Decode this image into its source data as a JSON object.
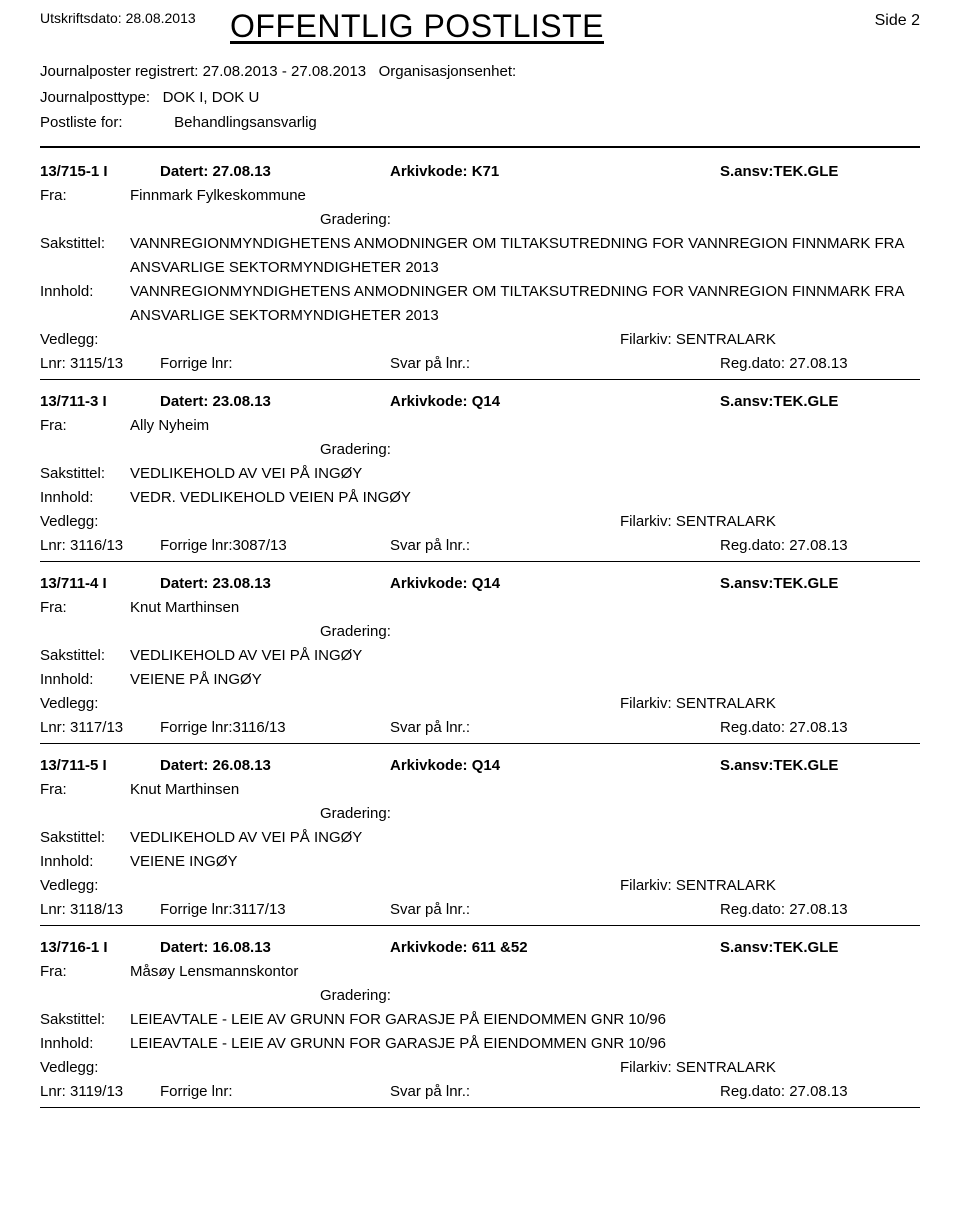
{
  "header": {
    "utskrift_label": "Utskriftsdato:",
    "utskrift_date": "28.08.2013",
    "title": "OFFENTLIG POSTLISTE",
    "side_label": "Side",
    "side_num": "2"
  },
  "meta": {
    "reg_label": "Journalposter registrert:",
    "reg_range": "27.08.2013  -  27.08.2013",
    "org_label": "Organisasjonsenhet:",
    "jptype_label": "Journalposttype:",
    "jptype_value": "DOK I, DOK U",
    "postliste_label": "Postliste for:",
    "postliste_value": "Behandlingsansvarlig"
  },
  "labels": {
    "datert": "Datert:",
    "arkivkode": "Arkivkode:",
    "sansv": "S.ansv:",
    "fra": "Fra:",
    "gradering": "Gradering:",
    "sakstittel": "Sakstittel:",
    "innhold": "Innhold:",
    "vedlegg": "Vedlegg:",
    "filarkiv": "Filarkiv:",
    "lnr": "Lnr:",
    "forrige": "Forrige lnr:",
    "svar": "Svar på lnr.:",
    "regdato": "Reg.dato:"
  },
  "entries": [
    {
      "jnr": "13/715-1 I",
      "datert": "27.08.13",
      "arkivkode": "K71",
      "sansv": "TEK.GLE",
      "fra": "Finnmark Fylkeskommune",
      "sakstittel": "VANNREGIONMYNDIGHETENS ANMODNINGER OM TILTAKSUTREDNING FOR  VANNREGION FINNMARK FRA ANSVARLIGE SEKTORMYNDIGHETER 2013",
      "innhold": "VANNREGIONMYNDIGHETENS ANMODNINGER OM TILTAKSUTREDNING FOR  VANNREGION FINNMARK FRA ANSVARLIGE SEKTORMYNDIGHETER 2013",
      "filarkiv": "SENTRALARK",
      "lnr": "3115/13",
      "forrige": "",
      "regdato": "27.08.13"
    },
    {
      "jnr": "13/711-3 I",
      "datert": "23.08.13",
      "arkivkode": "Q14",
      "sansv": "TEK.GLE",
      "fra": "Ally Nyheim",
      "sakstittel": "VEDLIKEHOLD AV VEI PÅ INGØY",
      "innhold": "VEDR. VEDLIKEHOLD VEIEN PÅ INGØY",
      "filarkiv": "SENTRALARK",
      "lnr": "3116/13",
      "forrige": "3087/13",
      "regdato": "27.08.13"
    },
    {
      "jnr": "13/711-4 I",
      "datert": "23.08.13",
      "arkivkode": "Q14",
      "sansv": "TEK.GLE",
      "fra": "Knut Marthinsen",
      "sakstittel": "VEDLIKEHOLD AV VEI PÅ INGØY",
      "innhold": "VEIENE PÅ INGØY",
      "filarkiv": "SENTRALARK",
      "lnr": "3117/13",
      "forrige": "3116/13",
      "regdato": "27.08.13"
    },
    {
      "jnr": "13/711-5 I",
      "datert": "26.08.13",
      "arkivkode": "Q14",
      "sansv": "TEK.GLE",
      "fra": "Knut Marthinsen",
      "sakstittel": "VEDLIKEHOLD AV VEI PÅ INGØY",
      "innhold": "VEIENE INGØY",
      "filarkiv": "SENTRALARK",
      "lnr": "3118/13",
      "forrige": "3117/13",
      "regdato": "27.08.13"
    },
    {
      "jnr": "13/716-1 I",
      "datert": "16.08.13",
      "arkivkode": "611  &52",
      "sansv": "TEK.GLE",
      "fra": "Måsøy Lensmannskontor",
      "sakstittel": "LEIEAVTALE - LEIE AV GRUNN FOR GARASJE PÅ EIENDOMMEN GNR 10/96",
      "innhold": "LEIEAVTALE - LEIE AV GRUNN FOR GARASJE PÅ EIENDOMMEN GNR 10/96",
      "filarkiv": "SENTRALARK",
      "lnr": "3119/13",
      "forrige": "",
      "regdato": "27.08.13"
    }
  ]
}
